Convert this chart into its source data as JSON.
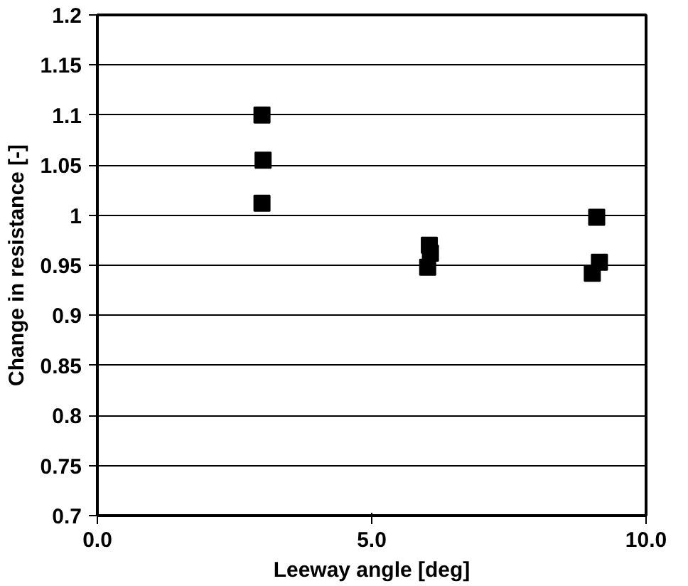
{
  "chart_data": {
    "type": "scatter",
    "xlabel": "Leeway angle [deg]",
    "ylabel": "Change in resistance [-]",
    "x": [
      3.0,
      3.02,
      3.0,
      6.05,
      6.07,
      6.02,
      9.1,
      9.15,
      9.02
    ],
    "series": [
      {
        "color": "#000000",
        "values": [
          1.1,
          1.055,
          1.012,
          0.97,
          0.962,
          0.948,
          0.998,
          0.953,
          0.942
        ]
      }
    ],
    "marker": "square",
    "grid": "y",
    "xlim": [
      0,
      10
    ],
    "ylim": [
      0.7,
      1.2
    ],
    "xticks": [
      {
        "value": 0,
        "label": "0.0"
      },
      {
        "value": 5,
        "label": "5.0"
      },
      {
        "value": 10,
        "label": "10.0"
      }
    ],
    "yticks": [
      0.7,
      0.75,
      0.8,
      0.85,
      0.9,
      0.95,
      1,
      1.05,
      1.1,
      1.15,
      1.2
    ]
  }
}
